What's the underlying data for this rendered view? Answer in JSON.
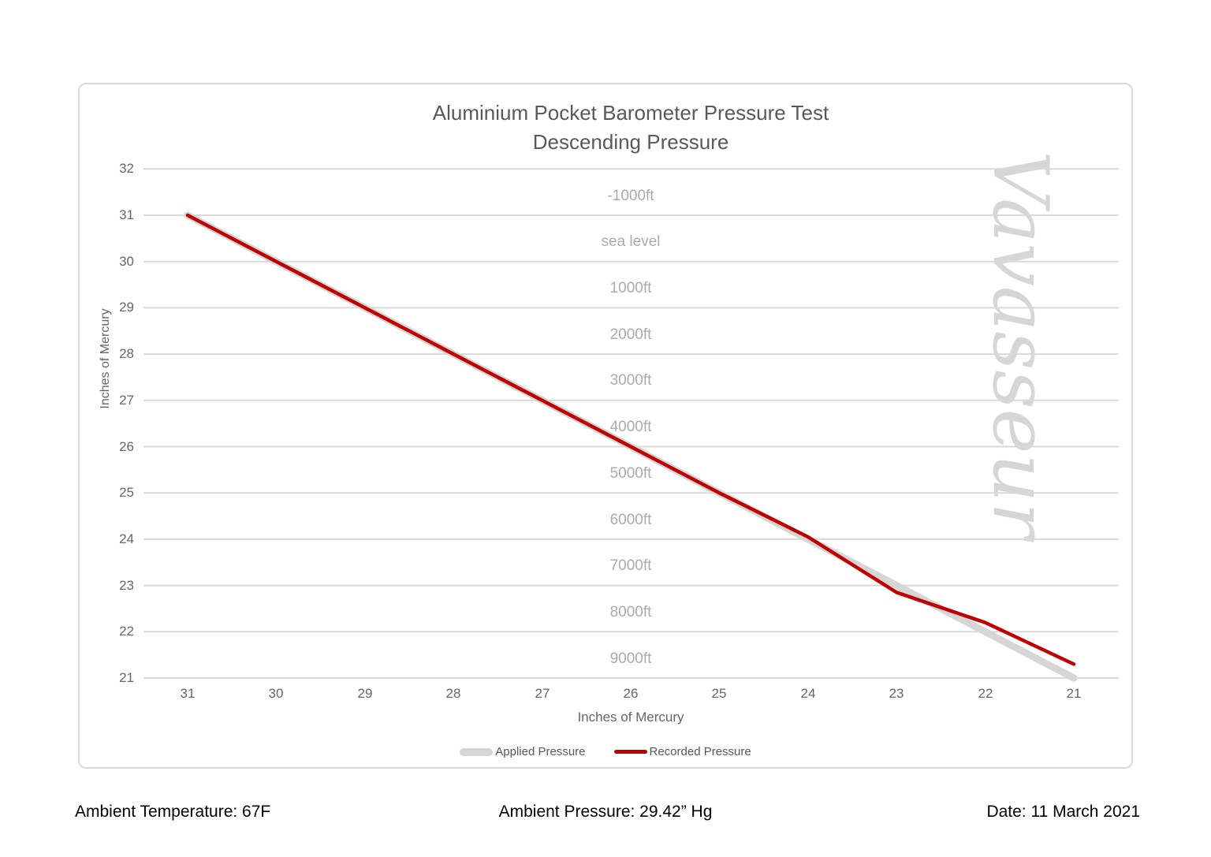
{
  "chart": {
    "title": "Aluminium Pocket Barometer Pressure Test",
    "subtitle": "Descending Pressure",
    "y_axis_title": "Inches of Mercury",
    "x_axis_title": "Inches of Mercury",
    "watermark": "Vavasseur",
    "legend": [
      {
        "label": "Applied Pressure",
        "color": "#d6d6d6",
        "thickness": 10
      },
      {
        "label": "Recorded Pressure",
        "color": "#c00000",
        "thickness": 5
      }
    ],
    "colors": {
      "gridline": "#d9d9d9",
      "applied_line": "#d6d6d6",
      "recorded_line": "#c00000",
      "title_text": "#595959",
      "tick_text": "#666666",
      "altitude_text": "#ababab",
      "watermark_text": "#d6d6d6",
      "border": "#d9d9d9"
    }
  },
  "chart_data": {
    "type": "line",
    "title": "Aluminium Pocket Barometer Pressure Test",
    "subtitle": "Descending Pressure",
    "xlabel": "Inches of Mercury",
    "ylabel": "Inches of Mercury",
    "x": [
      31,
      30,
      29,
      28,
      27,
      26,
      25,
      24,
      23,
      22,
      21
    ],
    "x_axis_reversed": true,
    "xlim": [
      31,
      21
    ],
    "ylim": [
      21,
      32
    ],
    "y_ticks": [
      32,
      31,
      30,
      29,
      28,
      27,
      26,
      25,
      24,
      23,
      22,
      21
    ],
    "grid": "horizontal",
    "legend_position": "bottom",
    "series": [
      {
        "name": "Applied Pressure",
        "values": [
          31,
          30,
          29,
          28,
          27,
          26,
          25,
          24,
          23,
          22,
          21
        ]
      },
      {
        "name": "Recorded Pressure",
        "values": [
          31,
          30,
          29,
          28,
          27,
          26,
          25,
          24.05,
          22.85,
          22.2,
          21.3
        ]
      }
    ],
    "altitude_band_labels": [
      "-1000ft",
      "sea level",
      "1000ft",
      "2000ft",
      "3000ft",
      "4000ft",
      "5000ft",
      "6000ft",
      "7000ft",
      "8000ft",
      "9000ft"
    ]
  },
  "footer": {
    "temperature": "Ambient Temperature: 67F",
    "pressure": "Ambient Pressure: 29.42” Hg",
    "date": "Date: 11 March 2021"
  }
}
